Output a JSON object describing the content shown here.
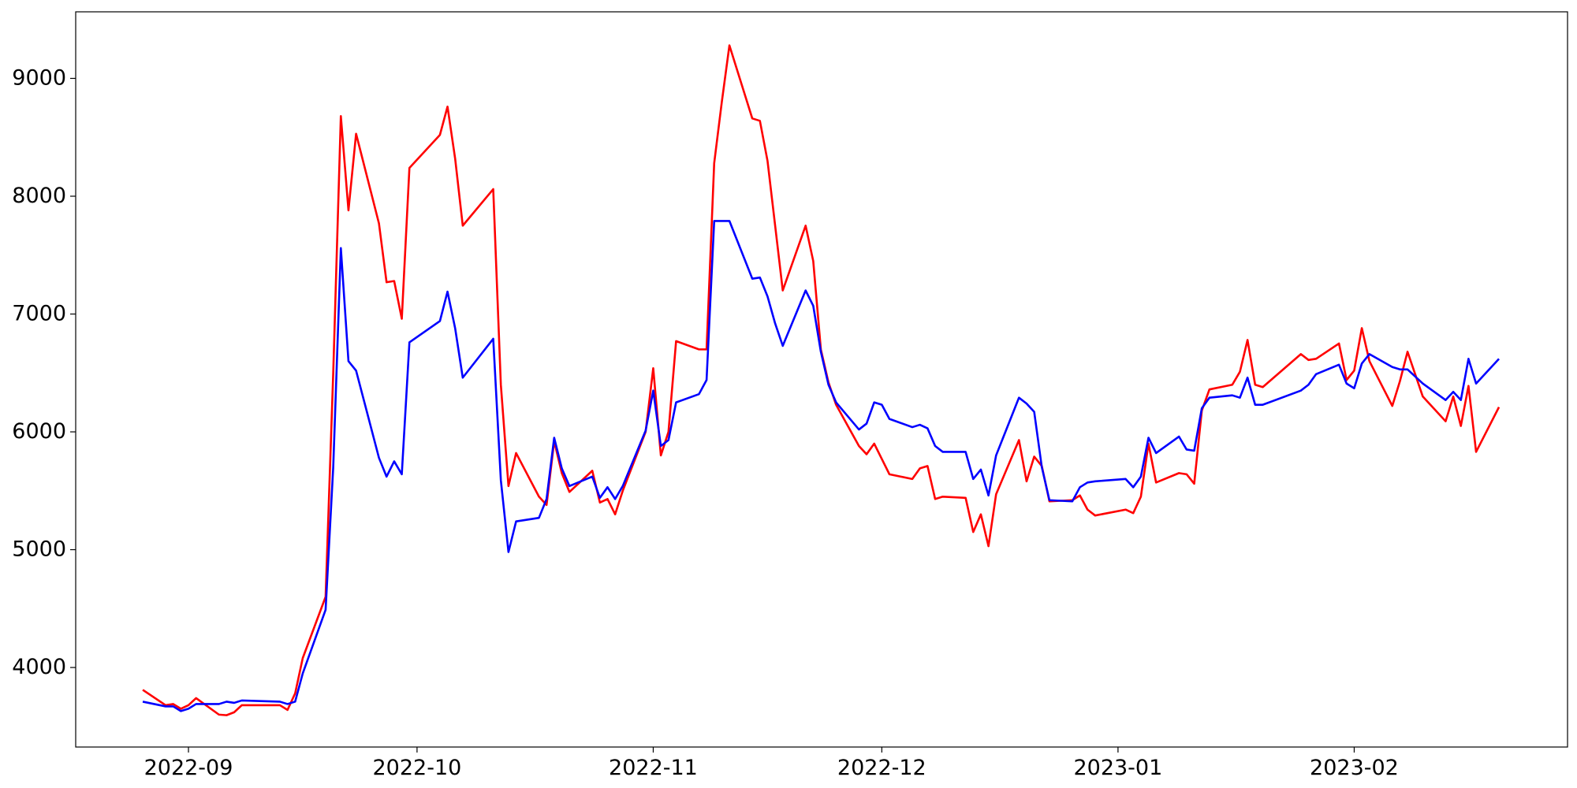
{
  "chart_data": {
    "type": "line",
    "x": [
      -6,
      -3,
      -2,
      -1,
      0,
      1,
      4,
      5,
      6,
      7,
      12,
      13,
      14,
      15,
      18,
      19,
      20,
      21,
      22,
      25,
      26,
      27,
      28,
      29,
      33,
      34,
      35,
      36,
      40,
      41,
      42,
      43,
      46,
      47,
      48,
      49,
      50,
      53,
      54,
      55,
      56,
      57,
      60,
      61,
      62,
      63,
      64,
      67,
      68,
      69,
      70,
      71,
      74,
      75,
      76,
      77,
      78,
      81,
      82,
      83,
      84,
      85,
      88,
      89,
      90,
      91,
      92,
      95,
      96,
      97,
      98,
      99,
      102,
      103,
      104,
      105,
      106,
      109,
      110,
      111,
      112,
      113,
      116,
      117,
      118,
      119,
      123,
      124,
      125,
      126,
      127,
      130,
      131,
      132,
      133,
      134,
      137,
      138,
      139,
      140,
      141,
      146,
      147,
      148,
      151,
      152,
      153,
      154,
      155,
      158,
      159,
      160,
      162,
      165,
      166,
      167,
      168,
      169,
      172
    ],
    "series": [
      {
        "color": "#ff0000",
        "values": [
          3810,
          3680,
          3690,
          3650,
          3680,
          3740,
          3600,
          3595,
          3620,
          3680,
          3680,
          3640,
          3780,
          4080,
          4600,
          6500,
          8680,
          7880,
          8530,
          7770,
          7270,
          7280,
          6960,
          8240,
          8520,
          8760,
          8320,
          7750,
          8060,
          6400,
          5540,
          5820,
          5450,
          5380,
          5920,
          5650,
          5490,
          5670,
          5400,
          5430,
          5300,
          5500,
          6000,
          6540,
          5800,
          6000,
          6770,
          6700,
          6700,
          8280,
          8800,
          9280,
          8660,
          8640,
          8300,
          7750,
          7200,
          7750,
          7450,
          6700,
          6420,
          6230,
          5880,
          5810,
          5900,
          5770,
          5640,
          5600,
          5690,
          5710,
          5430,
          5450,
          5440,
          5150,
          5300,
          5030,
          5470,
          5930,
          5580,
          5790,
          5710,
          5410,
          5420,
          5460,
          5340,
          5290,
          5340,
          5310,
          5450,
          5900,
          5570,
          5650,
          5640,
          5560,
          6180,
          6360,
          6400,
          6510,
          6780,
          6400,
          6380,
          6660,
          6610,
          6620,
          6750,
          6440,
          6520,
          6880,
          6600,
          6220,
          6430,
          6680,
          6300,
          6090,
          6300,
          6050,
          6390,
          5830,
          6210
        ]
      },
      {
        "color": "#0000ff",
        "values": [
          3710,
          3670,
          3670,
          3630,
          3650,
          3690,
          3690,
          3710,
          3700,
          3720,
          3710,
          3690,
          3710,
          3950,
          4490,
          5700,
          7560,
          6600,
          6520,
          5780,
          5620,
          5750,
          5640,
          6760,
          6940,
          7190,
          6880,
          6460,
          6790,
          5590,
          4980,
          5240,
          5270,
          5430,
          5950,
          5690,
          5540,
          5620,
          5440,
          5530,
          5430,
          5540,
          6010,
          6350,
          5880,
          5930,
          6250,
          6320,
          6440,
          7790,
          7790,
          7790,
          7300,
          7310,
          7150,
          6920,
          6730,
          7200,
          7070,
          6680,
          6400,
          6250,
          6020,
          6070,
          6250,
          6230,
          6110,
          6040,
          6060,
          6030,
          5880,
          5830,
          5830,
          5600,
          5680,
          5460,
          5800,
          6290,
          6240,
          6170,
          5700,
          5420,
          5410,
          5530,
          5570,
          5580,
          5600,
          5530,
          5620,
          5950,
          5820,
          5960,
          5850,
          5840,
          6200,
          6290,
          6310,
          6290,
          6460,
          6230,
          6230,
          6350,
          6400,
          6490,
          6570,
          6410,
          6370,
          6580,
          6660,
          6550,
          6530,
          6530,
          6410,
          6270,
          6340,
          6270,
          6620,
          6410,
          6620
        ]
      }
    ],
    "xlim": [
      -14.8,
      181
    ],
    "xticks": [
      {
        "value": 0,
        "label": "2022-09"
      },
      {
        "value": 30,
        "label": "2022-10"
      },
      {
        "value": 61,
        "label": "2022-11"
      },
      {
        "value": 91,
        "label": "2022-12"
      },
      {
        "value": 122,
        "label": "2023-01"
      },
      {
        "value": 153,
        "label": "2023-02"
      }
    ],
    "ylim": [
      3325,
      9565
    ],
    "yticks": [
      4000,
      5000,
      6000,
      7000,
      8000,
      9000
    ],
    "grid": false
  }
}
